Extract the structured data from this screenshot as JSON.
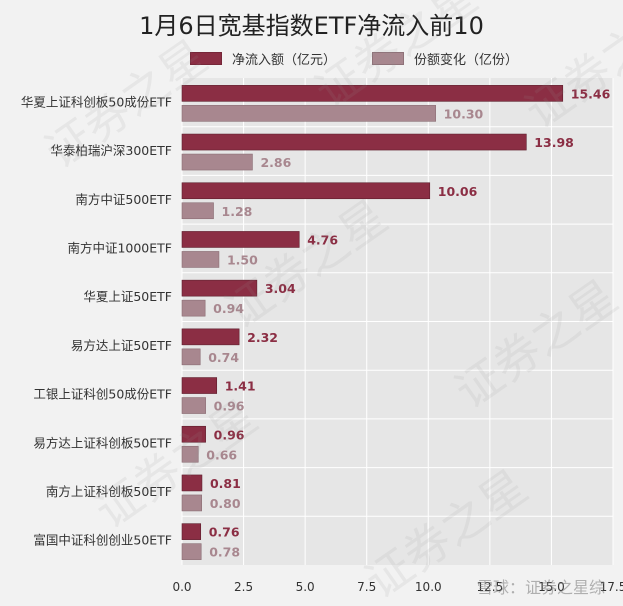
{
  "colors": {
    "net_inflow": "#8b2e44",
    "share_change": "#a8878f",
    "plot_bg": "#e6e6e6",
    "page_bg": "#f2f2f2"
  },
  "watermark": {
    "text": "雪球：证券之星综",
    "stamp": "证券之星"
  },
  "chart_data": {
    "type": "bar",
    "orientation": "horizontal",
    "title": "1月6日宽基指数ETF净流入前10",
    "categories": [
      "华夏上证科创板50成份ETF",
      "华泰柏瑞沪深300ETF",
      "南方中证500ETF",
      "南方中证1000ETF",
      "华夏上证50ETF",
      "易方达上证50ETF",
      "工银上证科创50成份ETF",
      "易方达上证科创板50ETF",
      "南方上证科创板50ETF",
      "富国中证科创创业50ETF"
    ],
    "series": [
      {
        "name": "净流入额（亿元）",
        "values": [
          15.46,
          13.98,
          10.06,
          4.76,
          3.04,
          2.32,
          1.41,
          0.96,
          0.81,
          0.76
        ],
        "labels": [
          "15.46",
          "13.98",
          "10.06",
          "4.76",
          "3.04",
          "2.32",
          "1.41",
          "0.96",
          "0.81",
          "0.76"
        ]
      },
      {
        "name": "份额变化（亿份）",
        "values": [
          10.3,
          2.86,
          1.28,
          1.5,
          0.94,
          0.74,
          0.96,
          0.66,
          0.8,
          0.78
        ],
        "labels": [
          "10.30",
          "2.86",
          "1.28",
          "1.50",
          "0.94",
          "0.74",
          "0.96",
          "0.66",
          "0.80",
          "0.78"
        ]
      }
    ],
    "xlim": [
      0,
      17.5
    ],
    "xticks": [
      "0.0",
      "2.5",
      "5.0",
      "7.5",
      "10.0",
      "12.5",
      "15.0",
      "17.5"
    ],
    "grid": true,
    "legend": "top"
  }
}
